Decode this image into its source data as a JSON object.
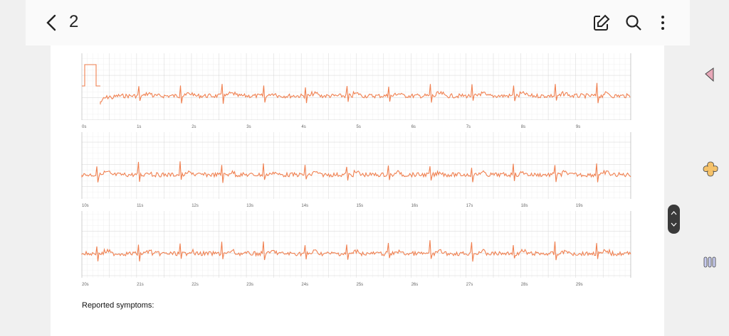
{
  "header": {
    "title": "2"
  },
  "strips": [
    {
      "labels": [
        "0s",
        "1s",
        "2s",
        "3s",
        "4s",
        "5s",
        "6s",
        "7s",
        "8s",
        "9s"
      ]
    },
    {
      "labels": [
        "10s",
        "11s",
        "12s",
        "13s",
        "14s",
        "15s",
        "16s",
        "17s",
        "18s",
        "19s"
      ]
    },
    {
      "labels": [
        "20s",
        "21s",
        "22s",
        "23s",
        "24s",
        "25s",
        "26s",
        "27s",
        "28s",
        "29s"
      ]
    }
  ],
  "symptoms_label": "Reported symptoms:"
}
